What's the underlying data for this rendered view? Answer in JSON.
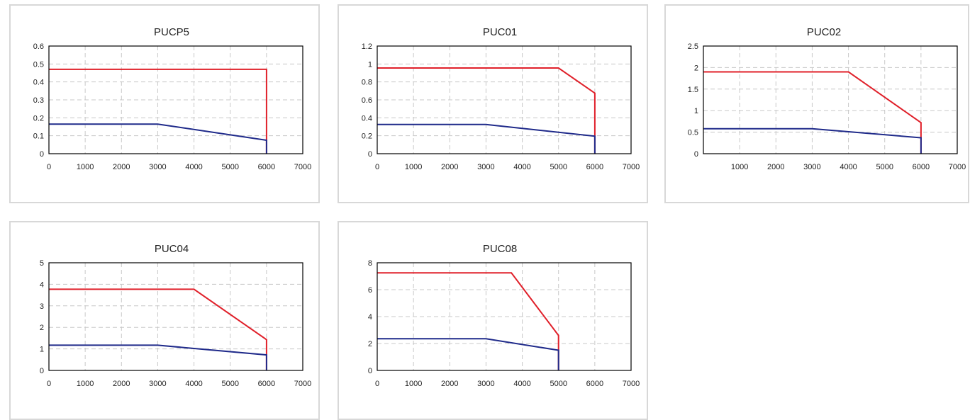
{
  "chart_data": [
    {
      "type": "line",
      "title": "PUCP5",
      "xlim": [
        0,
        7000
      ],
      "ylim": [
        0,
        0.6
      ],
      "x_ticks": [
        "0",
        "1000",
        "2000",
        "3000",
        "4000",
        "5000",
        "6000",
        "7000"
      ],
      "y_ticks": [
        "0",
        "0.1",
        "0.2",
        "0.3",
        "0.4",
        "0.5",
        "0.6"
      ],
      "grid": true,
      "series": [
        {
          "color": "#e0202a",
          "x": [
            0,
            6000,
            6000
          ],
          "y": [
            0.47,
            0.47,
            0
          ]
        },
        {
          "color": "#1f2a8a",
          "x": [
            0,
            3000,
            6000,
            6000
          ],
          "y": [
            0.165,
            0.165,
            0.075,
            0
          ]
        }
      ]
    },
    {
      "type": "line",
      "title": "PUC01",
      "xlim": [
        0,
        7000
      ],
      "ylim": [
        0,
        1.2
      ],
      "x_ticks": [
        "0",
        "1000",
        "2000",
        "3000",
        "4000",
        "5000",
        "6000",
        "7000"
      ],
      "y_ticks": [
        "0",
        "0.2",
        "0.4",
        "0.6",
        "0.8",
        "1",
        "1.2"
      ],
      "grid": true,
      "series": [
        {
          "color": "#e0202a",
          "x": [
            0,
            5000,
            6000,
            6000
          ],
          "y": [
            0.955,
            0.955,
            0.675,
            0
          ]
        },
        {
          "color": "#1f2a8a",
          "x": [
            0,
            3000,
            6000,
            6000
          ],
          "y": [
            0.325,
            0.325,
            0.195,
            0
          ]
        }
      ]
    },
    {
      "type": "line",
      "title": "PUC02",
      "xlim": [
        0,
        7000
      ],
      "ylim": [
        0,
        2.5
      ],
      "x_ticks": [
        "",
        "1000",
        "2000",
        "3000",
        "4000",
        "5000",
        "6000",
        "7000"
      ],
      "y_ticks": [
        "0",
        "0.5",
        "1",
        "1.5",
        "2",
        "2.5"
      ],
      "grid": true,
      "series": [
        {
          "color": "#e0202a",
          "x": [
            0,
            4000,
            6000,
            6000
          ],
          "y": [
            1.9,
            1.9,
            0.72,
            0
          ]
        },
        {
          "color": "#1f2a8a",
          "x": [
            0,
            3000,
            6000,
            6000
          ],
          "y": [
            0.58,
            0.58,
            0.37,
            0
          ]
        }
      ]
    },
    {
      "type": "line",
      "title": "PUC04",
      "xlim": [
        0,
        7000
      ],
      "ylim": [
        0,
        5
      ],
      "x_ticks": [
        "0",
        "1000",
        "2000",
        "3000",
        "4000",
        "5000",
        "6000",
        "7000"
      ],
      "y_ticks": [
        "0",
        "1",
        "2",
        "3",
        "4",
        "5"
      ],
      "grid": true,
      "series": [
        {
          "color": "#e0202a",
          "x": [
            0,
            4000,
            6000,
            6000
          ],
          "y": [
            3.77,
            3.77,
            1.43,
            0
          ]
        },
        {
          "color": "#1f2a8a",
          "x": [
            0,
            3000,
            6000,
            6000
          ],
          "y": [
            1.17,
            1.17,
            0.72,
            0
          ]
        }
      ]
    },
    {
      "type": "line",
      "title": "PUC08",
      "xlim": [
        0,
        7000
      ],
      "ylim": [
        0,
        8
      ],
      "x_ticks": [
        "0",
        "1000",
        "2000",
        "3000",
        "4000",
        "5000",
        "6000",
        "7000"
      ],
      "y_ticks": [
        "0",
        "2",
        "4",
        "6",
        "8"
      ],
      "grid": true,
      "series": [
        {
          "color": "#e0202a",
          "x": [
            0,
            3700,
            5000,
            5000
          ],
          "y": [
            7.25,
            7.25,
            2.6,
            0
          ]
        },
        {
          "color": "#1f2a8a",
          "x": [
            0,
            3000,
            5000,
            5000
          ],
          "y": [
            2.35,
            2.35,
            1.5,
            0
          ]
        }
      ]
    }
  ]
}
